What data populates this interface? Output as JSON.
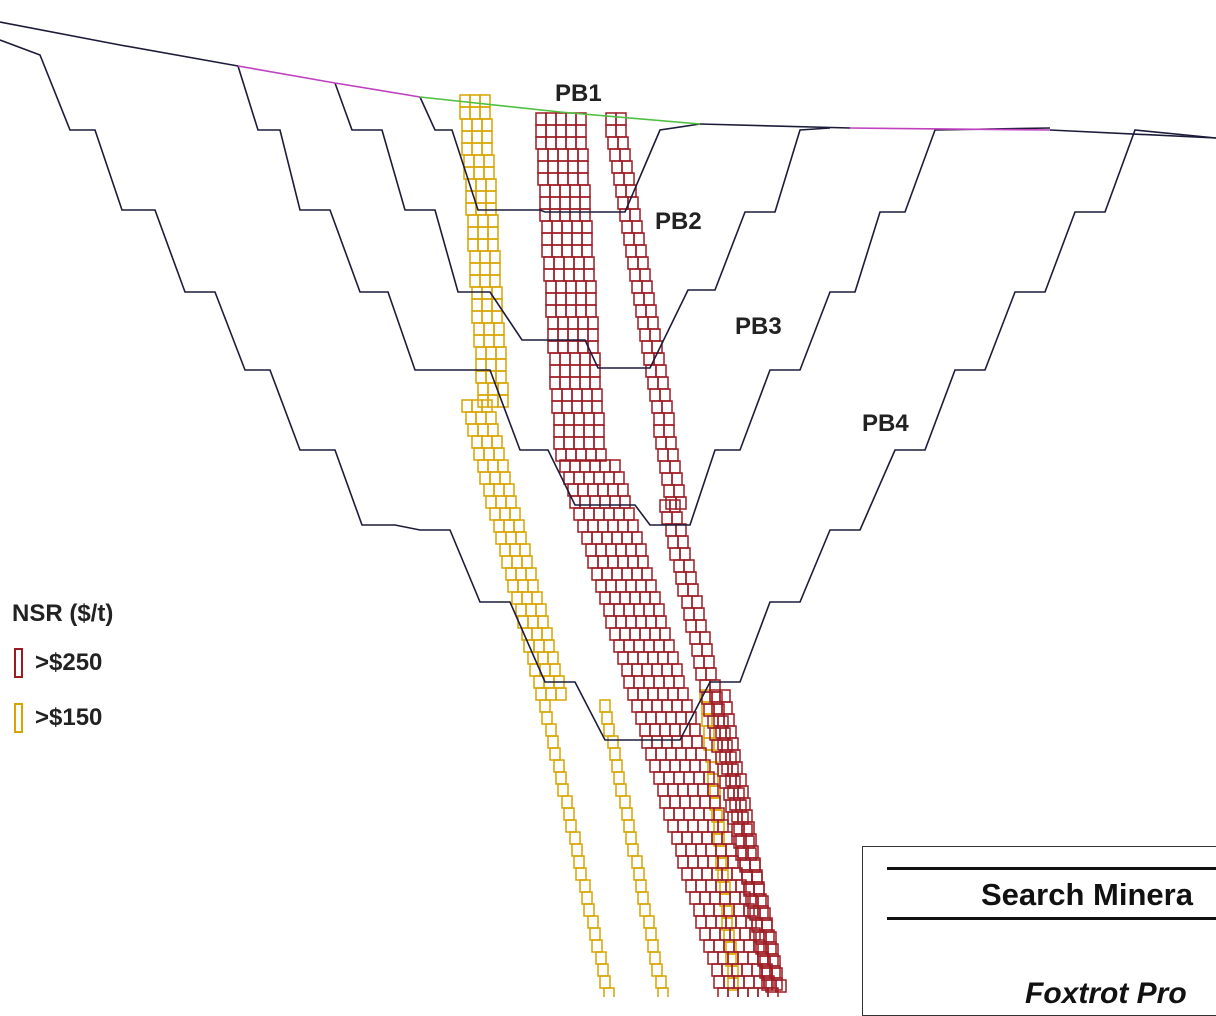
{
  "phases": [
    {
      "id": "pb1",
      "label": "PB1"
    },
    {
      "id": "pb2",
      "label": "PB2"
    },
    {
      "id": "pb3",
      "label": "PB3"
    },
    {
      "id": "pb4",
      "label": "PB4"
    }
  ],
  "legend": {
    "title": "NSR ($/t)",
    "items": [
      {
        "label": ">$250",
        "color": "#9e1a22"
      },
      {
        "label": ">$150",
        "color": "#d9a400"
      }
    ]
  },
  "title_block": {
    "company": "Search Minera",
    "project": "Foxtrot Pro"
  },
  "colors": {
    "pit_line": "#1c1c3a",
    "topo_magenta": "#c040c0",
    "topo_green": "#4ec040",
    "high_grade": "#9e1a22",
    "low_grade": "#d9a400"
  }
}
